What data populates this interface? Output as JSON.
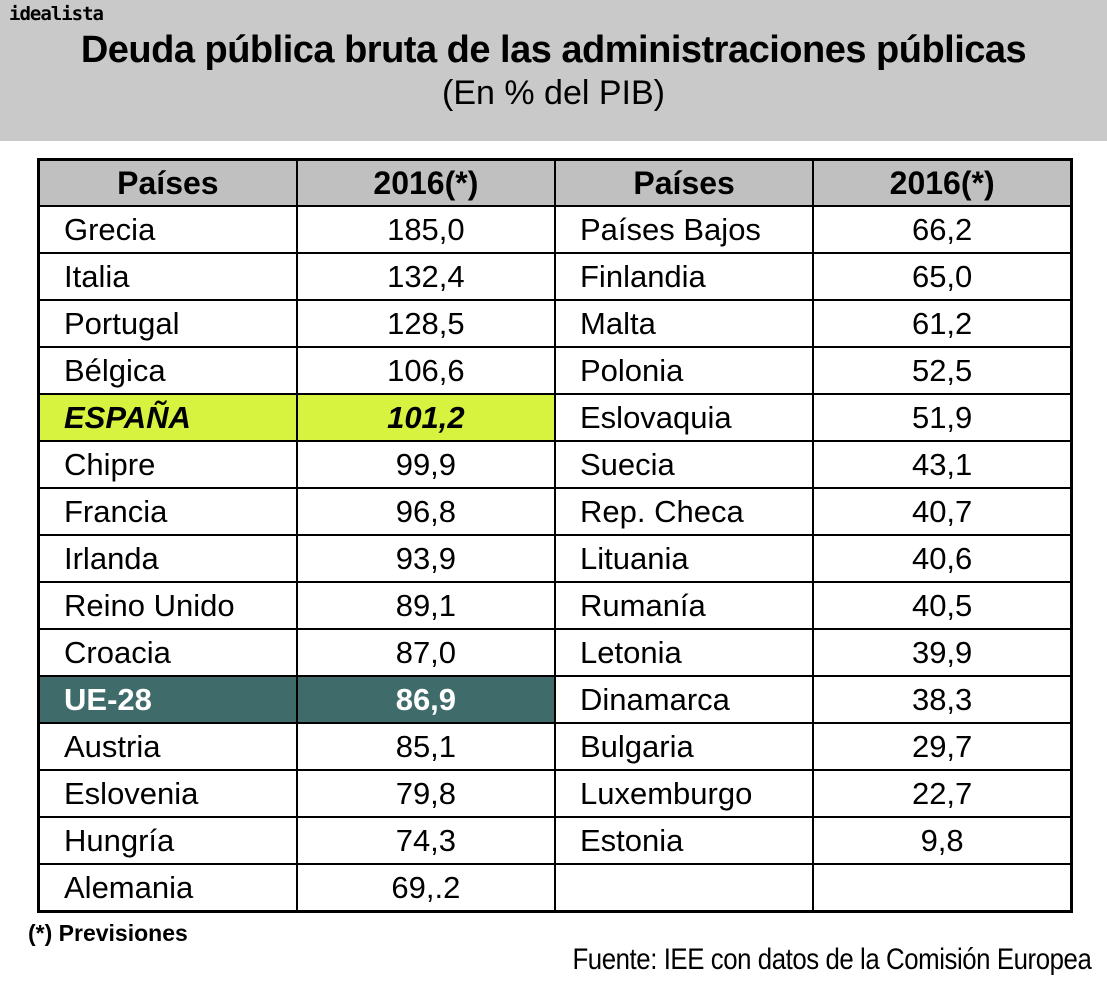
{
  "brand": {
    "logo_text": "idealista"
  },
  "header": {
    "title": "Deuda pública bruta de las administraciones públicas",
    "subtitle": "(En % del PIB)"
  },
  "table": {
    "headers": {
      "col1": "Países",
      "col2": "2016(*)",
      "col3": "Países",
      "col4": "2016(*)"
    },
    "rows": [
      {
        "l_country": "Grecia",
        "l_value": "185,0",
        "r_country": "Países Bajos",
        "r_value": "66,2"
      },
      {
        "l_country": "Italia",
        "l_value": "132,4",
        "r_country": "Finlandia",
        "r_value": "65,0"
      },
      {
        "l_country": "Portugal",
        "l_value": "128,5",
        "r_country": "Malta",
        "r_value": "61,2"
      },
      {
        "l_country": "Bélgica",
        "l_value": "106,6",
        "r_country": "Polonia",
        "r_value": "52,5"
      },
      {
        "l_country": "ESPAÑA",
        "l_value": "101,2",
        "r_country": "Eslovaquia",
        "r_value": "51,9"
      },
      {
        "l_country": "Chipre",
        "l_value": "99,9",
        "r_country": "Suecia",
        "r_value": "43,1"
      },
      {
        "l_country": "Francia",
        "l_value": "96,8",
        "r_country": "Rep. Checa",
        "r_value": "40,7"
      },
      {
        "l_country": "Irlanda",
        "l_value": "93,9",
        "r_country": "Lituania",
        "r_value": "40,6"
      },
      {
        "l_country": "Reino Unido",
        "l_value": "89,1",
        "r_country": "Rumanía",
        "r_value": "40,5"
      },
      {
        "l_country": "Croacia",
        "l_value": "87,0",
        "r_country": "Letonia",
        "r_value": "39,9"
      },
      {
        "l_country": "UE-28",
        "l_value": "86,9",
        "r_country": "Dinamarca",
        "r_value": "38,3"
      },
      {
        "l_country": "Austria",
        "l_value": "85,1",
        "r_country": "Bulgaria",
        "r_value": "29,7"
      },
      {
        "l_country": "Eslovenia",
        "l_value": "79,8",
        "r_country": "Luxemburgo",
        "r_value": "22,7"
      },
      {
        "l_country": "Hungría",
        "l_value": "74,3",
        "r_country": "Estonia",
        "r_value": "9,8"
      },
      {
        "l_country": "Alemania",
        "l_value": "69,.2",
        "r_country": "",
        "r_value": ""
      }
    ]
  },
  "footer": {
    "note": "(*) Previsiones",
    "source": "Fuente: IEE con datos de la Comisión Europea"
  },
  "colors": {
    "band_gray": "#c9c9c9",
    "table_header_gray": "#c0c0c0",
    "espana_highlight_yellow": "#d7f23f",
    "ue28_teal": "#3f6b6b",
    "ue28_text": "#ffffff",
    "border_black": "#000000"
  },
  "chart_data": {
    "type": "table",
    "title": "Deuda pública bruta de las administraciones públicas",
    "subtitle": "(En % del PIB)",
    "unit": "% del PIB",
    "columns": [
      "Países",
      "2016(*)"
    ],
    "entries": [
      {
        "pais": "Grecia",
        "valor": 185.0
      },
      {
        "pais": "Italia",
        "valor": 132.4
      },
      {
        "pais": "Portugal",
        "valor": 128.5
      },
      {
        "pais": "Bélgica",
        "valor": 106.6
      },
      {
        "pais": "ESPAÑA",
        "valor": 101.2,
        "destacado": "amarillo"
      },
      {
        "pais": "Chipre",
        "valor": 99.9
      },
      {
        "pais": "Francia",
        "valor": 96.8
      },
      {
        "pais": "Irlanda",
        "valor": 93.9
      },
      {
        "pais": "Reino Unido",
        "valor": 89.1
      },
      {
        "pais": "Croacia",
        "valor": 87.0
      },
      {
        "pais": "UE-28",
        "valor": 86.9,
        "destacado": "verde-azulado"
      },
      {
        "pais": "Austria",
        "valor": 85.1
      },
      {
        "pais": "Eslovenia",
        "valor": 79.8
      },
      {
        "pais": "Hungría",
        "valor": 74.3
      },
      {
        "pais": "Alemania",
        "valor_mostrado": "69,.2",
        "valor": 69.2
      },
      {
        "pais": "Países Bajos",
        "valor": 66.2
      },
      {
        "pais": "Finlandia",
        "valor": 65.0
      },
      {
        "pais": "Malta",
        "valor": 61.2
      },
      {
        "pais": "Polonia",
        "valor": 52.5
      },
      {
        "pais": "Eslovaquia",
        "valor": 51.9
      },
      {
        "pais": "Suecia",
        "valor": 43.1
      },
      {
        "pais": "Rep. Checa",
        "valor": 40.7
      },
      {
        "pais": "Lituania",
        "valor": 40.6
      },
      {
        "pais": "Rumanía",
        "valor": 40.5
      },
      {
        "pais": "Letonia",
        "valor": 39.9
      },
      {
        "pais": "Dinamarca",
        "valor": 38.3
      },
      {
        "pais": "Bulgaria",
        "valor": 29.7
      },
      {
        "pais": "Luxemburgo",
        "valor": 22.7
      },
      {
        "pais": "Estonia",
        "valor": 9.8
      }
    ],
    "note": "(*) Previsiones",
    "source": "Fuente: IEE con datos de la Comisión Europea"
  }
}
